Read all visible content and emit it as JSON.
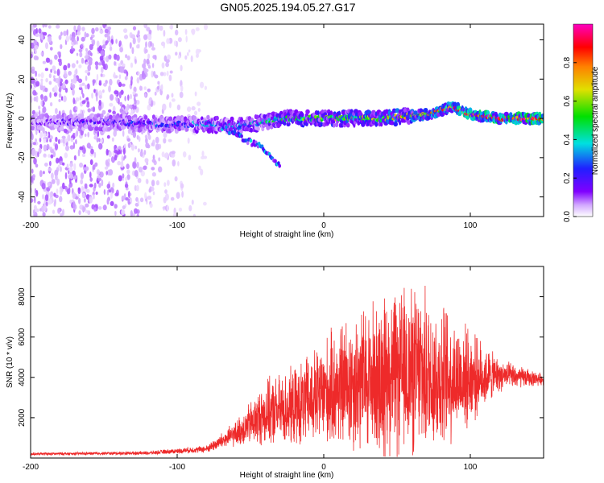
{
  "title": "GN05.2025.194.05.27.G17",
  "colors": {
    "snr_line": "#ee2a2a",
    "colormap": [
      "#ffffff",
      "#d2a8ff",
      "#8000ff",
      "#2020ff",
      "#00e0e0",
      "#00e000",
      "#e0e000",
      "#ff8000",
      "#ff0000",
      "#ff00c0"
    ]
  },
  "chart_data": [
    {
      "type": "heatmap",
      "title": "GN05.2025.194.05.27.G17",
      "xlabel": "Height of straight line (km)",
      "ylabel": "Frequency (Hz)",
      "xlim": [
        -200,
        150
      ],
      "ylim": [
        -50,
        48
      ],
      "xticks": [
        -200,
        -100,
        0,
        100
      ],
      "yticks": [
        -40,
        -20,
        0,
        20,
        40
      ],
      "colorbar": {
        "label": "Normalized spectral amplitude",
        "range": [
          0,
          1
        ],
        "ticks": [
          0,
          0.2,
          0.4,
          0.6,
          0.8
        ],
        "tick_labels": [
          "0.0",
          "0.2",
          "0.4",
          "0.6",
          "0.8"
        ],
        "colormap": "rainbow (white-violet-blue-cyan-green-yellow-red-magenta)"
      },
      "noise_region_x": [
        -200,
        -80
      ],
      "ridge": [
        {
          "x": -200,
          "f": -2,
          "amp": 0.25
        },
        {
          "x": -150,
          "f": -2,
          "amp": 0.3
        },
        {
          "x": -110,
          "f": -3,
          "amp": 0.35
        },
        {
          "x": -80,
          "f": -3,
          "amp": 0.4
        },
        {
          "x": -60,
          "f": -4,
          "amp": 0.4
        },
        {
          "x": -40,
          "f": -2,
          "amp": 0.45
        },
        {
          "x": -30,
          "f": 0,
          "amp": 0.55
        },
        {
          "x": 0,
          "f": 0,
          "amp": 0.6
        },
        {
          "x": 40,
          "f": 0,
          "amp": 0.65
        },
        {
          "x": 70,
          "f": 2,
          "amp": 0.7
        },
        {
          "x": 88,
          "f": 6,
          "amp": 0.85
        },
        {
          "x": 100,
          "f": 2,
          "amp": 0.85
        },
        {
          "x": 120,
          "f": 0,
          "amp": 0.95
        },
        {
          "x": 150,
          "f": 0,
          "amp": 0.95
        }
      ],
      "branch": [
        {
          "x": -70,
          "f": -4
        },
        {
          "x": -55,
          "f": -10
        },
        {
          "x": -40,
          "f": -16
        },
        {
          "x": -30,
          "f": -24
        }
      ]
    },
    {
      "type": "line",
      "xlabel": "Height of straight line (km)",
      "ylabel": "SNR (10 * v/v)",
      "xlim": [
        -200,
        150
      ],
      "ylim": [
        0,
        9500
      ],
      "xticks": [
        -200,
        -100,
        0,
        100
      ],
      "yticks": [
        2000,
        4000,
        6000,
        8000
      ],
      "envelope": [
        {
          "x": -200,
          "mean": 200,
          "amp": 80
        },
        {
          "x": -120,
          "mean": 250,
          "amp": 100
        },
        {
          "x": -80,
          "mean": 450,
          "amp": 200
        },
        {
          "x": -60,
          "mean": 1200,
          "amp": 700
        },
        {
          "x": -40,
          "mean": 2200,
          "amp": 1800
        },
        {
          "x": -20,
          "mean": 2500,
          "amp": 2200
        },
        {
          "x": 0,
          "mean": 3200,
          "amp": 3000
        },
        {
          "x": 20,
          "mean": 3800,
          "amp": 4000
        },
        {
          "x": 60,
          "mean": 4300,
          "amp": 4800
        },
        {
          "x": 80,
          "mean": 4000,
          "amp": 4200
        },
        {
          "x": 100,
          "mean": 4000,
          "amp": 2600
        },
        {
          "x": 120,
          "mean": 4100,
          "amp": 900
        },
        {
          "x": 150,
          "mean": 3900,
          "amp": 300
        }
      ]
    }
  ]
}
